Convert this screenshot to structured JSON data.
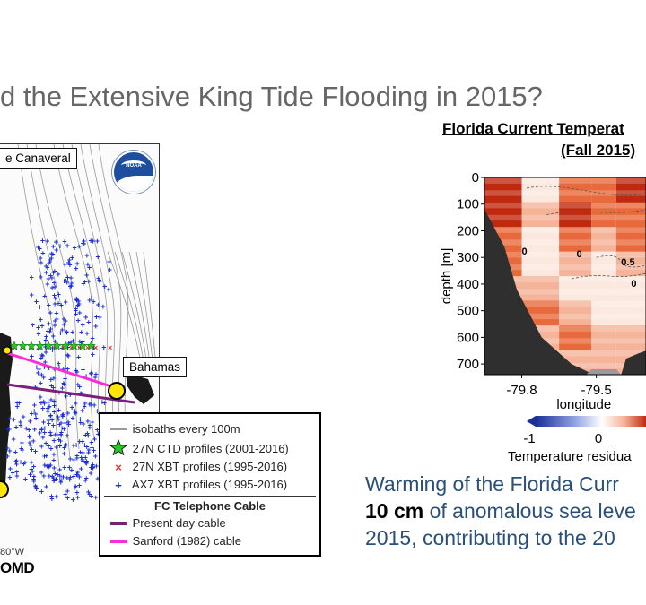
{
  "slide": {
    "title": "d the Extensive King Tide Flooding in 2015?"
  },
  "map": {
    "cape_label": "e Canaveral",
    "bahamas_label": "Bahamas",
    "noaa_logo": "noaa-logo",
    "lon_label": "80°W",
    "source_label": "OMD",
    "colors": {
      "ctd": "#22cc22",
      "xbt27": "#e03030",
      "ax7": "#1a2fd8",
      "present_cable": "#7a1f7a",
      "sanford_cable": "#ff2bd6"
    },
    "legend": {
      "isobaths": "isobaths every 100m",
      "ctd": "27N CTD profiles (2001-2016)",
      "xbt27": "27N XBT profiles (1995-2016)",
      "ax7": "AX7 XBT profiles (1995-2016)",
      "cable_header": "FC Telephone Cable",
      "present": "Present day cable",
      "sanford": "Sanford (1982) cable"
    }
  },
  "chart": {
    "title_line1": "Florida Current Temperat",
    "title_line2": "(Fall 2015)",
    "chart_data": {
      "type": "heatmap",
      "title": "Florida Current Temperat (Fall 2015)",
      "xlabel": "longitude",
      "ylabel": "depth [m]",
      "x_ticks": [
        "-79.8",
        "-79.5"
      ],
      "y_ticks": [
        "0",
        "100",
        "200",
        "300",
        "400",
        "500",
        "600",
        "700"
      ],
      "colorbar_label": "Temperature residua",
      "colorbar_ticks": [
        "-1",
        "0"
      ],
      "contour_labels": [
        "0",
        "0",
        "0.5",
        "0"
      ],
      "x_range": [
        -79.95,
        -79.3
      ],
      "y_range": [
        0,
        740
      ],
      "colors": {
        "warm_dark": "#c0290f",
        "warm": "#e86a3c",
        "warm_light": "#f5b49a",
        "neutral": "#fbe9e0",
        "cold": "#1a2f9a",
        "land": "#2f2f2f",
        "bottom": "#9a9a9a"
      }
    }
  },
  "caption": {
    "line1": "Warming of the Florida Curr",
    "line2_bold": "10 cm",
    "line2_rest": " of anomalous sea leve",
    "line3": "2015, contributing to the 20"
  }
}
